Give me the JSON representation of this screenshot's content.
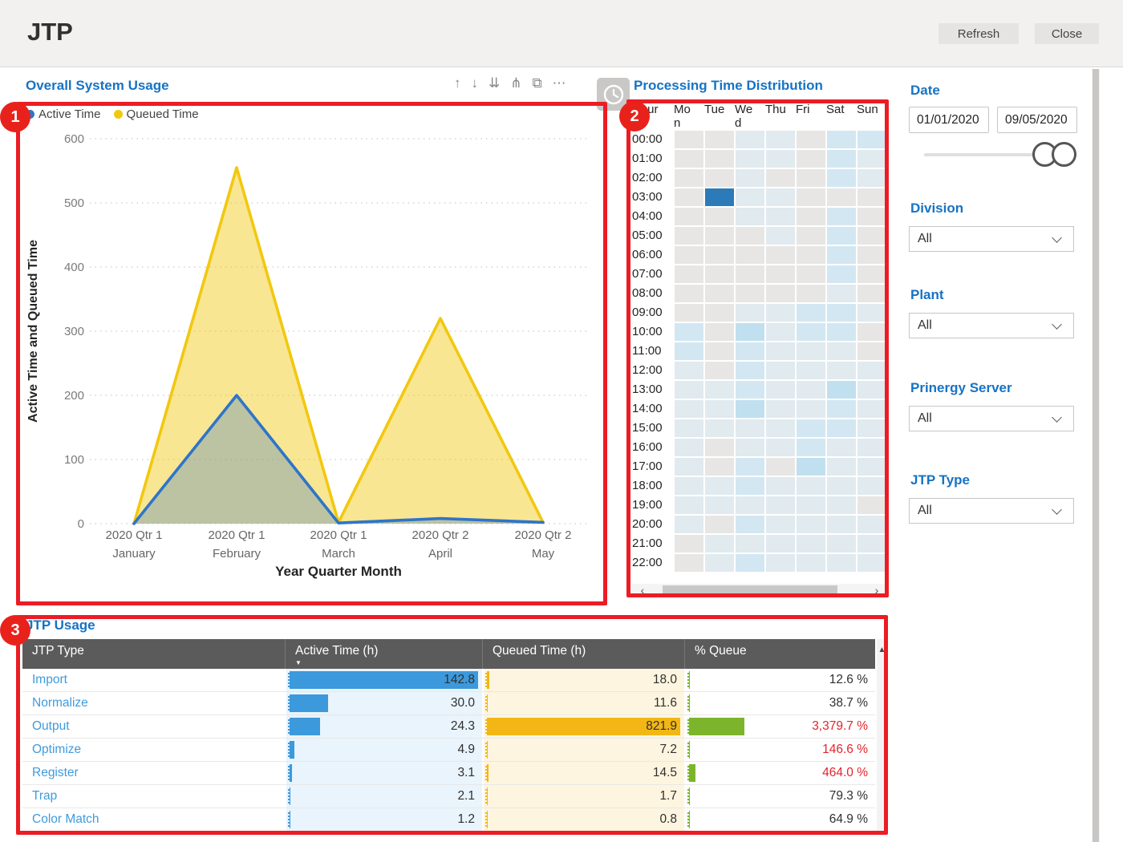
{
  "header": {
    "title": "JTP",
    "refresh_label": "Refresh",
    "close_label": "Close"
  },
  "usage_chart": {
    "title": "Overall System Usage",
    "toolbar_icons": [
      {
        "name": "arrow-up-icon",
        "glyph": "↑"
      },
      {
        "name": "arrow-down-icon",
        "glyph": "↓"
      },
      {
        "name": "double-arrow-down-icon",
        "glyph": "⇊"
      },
      {
        "name": "drill-down-icon",
        "glyph": "⋔"
      },
      {
        "name": "focus-mode-icon",
        "glyph": "⧉"
      },
      {
        "name": "more-options-icon",
        "glyph": "⋯"
      }
    ],
    "chart_data": {
      "type": "area",
      "categories": [
        [
          "2020 Qtr 1",
          "January"
        ],
        [
          "2020 Qtr 1",
          "February"
        ],
        [
          "2020 Qtr 1",
          "March"
        ],
        [
          "2020 Qtr 2",
          "April"
        ],
        [
          "2020 Qtr 2",
          "May"
        ]
      ],
      "series": [
        {
          "name": "Active Time",
          "color": "#2e75c9",
          "fill_opacity": 0.3,
          "values": [
            0,
            200,
            1,
            8,
            2
          ]
        },
        {
          "name": "Queued Time",
          "color": "#f2c80f",
          "fill_opacity": 0.45,
          "values": [
            0,
            555,
            2,
            320,
            2
          ]
        }
      ],
      "xlabel": "Year Quarter Month",
      "ylabel": "Active Time and Queued Time",
      "ylim": [
        0,
        600
      ],
      "yticks": [
        0,
        100,
        200,
        300,
        400,
        500,
        600
      ],
      "grid": "dotted-horizontal",
      "legend_position": "top-left"
    }
  },
  "heatmap": {
    "title": "Processing Time Distribution",
    "sort_icon": "▲",
    "columns": [
      "Hour",
      "Mon",
      "Tue",
      "Wed",
      "Thu",
      "Fri",
      "Sat",
      "Sun"
    ],
    "level_colors": [
      "#e7e6e5",
      "#e0eaef",
      "#d2e7f2",
      "#c0e0f0",
      "#2c7bb8"
    ],
    "rows": [
      {
        "hour": "00:00",
        "levels": [
          0,
          0,
          1,
          1,
          0,
          2,
          2
        ]
      },
      {
        "hour": "01:00",
        "levels": [
          0,
          0,
          1,
          1,
          0,
          2,
          1
        ]
      },
      {
        "hour": "02:00",
        "levels": [
          0,
          0,
          1,
          0,
          0,
          2,
          1
        ]
      },
      {
        "hour": "03:00",
        "levels": [
          0,
          4,
          1,
          1,
          0,
          0,
          0
        ]
      },
      {
        "hour": "04:00",
        "levels": [
          0,
          0,
          1,
          1,
          0,
          2,
          0
        ]
      },
      {
        "hour": "05:00",
        "levels": [
          0,
          0,
          0,
          1,
          0,
          2,
          0
        ]
      },
      {
        "hour": "06:00",
        "levels": [
          0,
          0,
          0,
          0,
          0,
          2,
          0
        ]
      },
      {
        "hour": "07:00",
        "levels": [
          0,
          0,
          0,
          0,
          0,
          2,
          0
        ]
      },
      {
        "hour": "08:00",
        "levels": [
          0,
          0,
          0,
          0,
          0,
          1,
          0
        ]
      },
      {
        "hour": "09:00",
        "levels": [
          0,
          0,
          1,
          1,
          2,
          2,
          1
        ]
      },
      {
        "hour": "10:00",
        "levels": [
          2,
          0,
          3,
          1,
          2,
          2,
          0
        ]
      },
      {
        "hour": "11:00",
        "levels": [
          2,
          0,
          2,
          1,
          1,
          1,
          0
        ]
      },
      {
        "hour": "12:00",
        "levels": [
          1,
          0,
          2,
          1,
          1,
          1,
          1
        ]
      },
      {
        "hour": "13:00",
        "levels": [
          1,
          1,
          2,
          1,
          1,
          3,
          1
        ]
      },
      {
        "hour": "14:00",
        "levels": [
          1,
          1,
          3,
          1,
          1,
          2,
          1
        ]
      },
      {
        "hour": "15:00",
        "levels": [
          1,
          1,
          1,
          1,
          2,
          2,
          1
        ]
      },
      {
        "hour": "16:00",
        "levels": [
          1,
          0,
          1,
          1,
          2,
          1,
          1
        ]
      },
      {
        "hour": "17:00",
        "levels": [
          1,
          0,
          2,
          0,
          3,
          1,
          1
        ]
      },
      {
        "hour": "18:00",
        "levels": [
          1,
          1,
          2,
          1,
          1,
          1,
          1
        ]
      },
      {
        "hour": "19:00",
        "levels": [
          1,
          1,
          1,
          1,
          1,
          1,
          0
        ]
      },
      {
        "hour": "20:00",
        "levels": [
          1,
          0,
          2,
          1,
          1,
          1,
          1
        ]
      },
      {
        "hour": "21:00",
        "levels": [
          0,
          1,
          1,
          1,
          1,
          1,
          1
        ]
      },
      {
        "hour": "22:00",
        "levels": [
          0,
          1,
          2,
          1,
          1,
          1,
          1
        ]
      }
    ],
    "scroll": {
      "left_icon": "‹",
      "right_icon": "›"
    }
  },
  "filters": {
    "date": {
      "label": "Date",
      "start": "01/01/2020",
      "end": "09/05/2020"
    },
    "division": {
      "label": "Division",
      "value": "All"
    },
    "plant": {
      "label": "Plant",
      "value": "All"
    },
    "prinergy_server": {
      "label": "Prinergy Server",
      "value": "All"
    },
    "jtp_type": {
      "label": "JTP Type",
      "value": "All"
    }
  },
  "table": {
    "title": "JTP Usage",
    "columns": [
      "JTP Type",
      "Active Time (h)",
      "Queued Time (h)",
      "% Queue"
    ],
    "sort": {
      "column_index": 1,
      "glyph": "▼"
    },
    "scroll_up_icon": "▲",
    "bar_colors": {
      "active": "#3c99dc",
      "queued": "#f2b715",
      "pct": "#7cb52b"
    },
    "rows": [
      {
        "type": "Import",
        "active": "142.8",
        "queued": "18.0",
        "pct": "12.6 %"
      },
      {
        "type": "Normalize",
        "active": "30.0",
        "queued": "11.6",
        "pct": "38.7 %"
      },
      {
        "type": "Output",
        "active": "24.3",
        "queued": "821.9",
        "pct": "3,379.7 %"
      },
      {
        "type": "Optimize",
        "active": "4.9",
        "queued": "7.2",
        "pct": "146.6 %"
      },
      {
        "type": "Register",
        "active": "3.1",
        "queued": "14.5",
        "pct": "464.0 %"
      },
      {
        "type": "Trap",
        "active": "2.1",
        "queued": "1.7",
        "pct": "79.3 %"
      },
      {
        "type": "Color Match",
        "active": "1.2",
        "queued": "0.8",
        "pct": "64.9 %"
      }
    ]
  },
  "annotations": {
    "color": "#ec1c24",
    "items": [
      {
        "label": "1"
      },
      {
        "label": "2"
      },
      {
        "label": "3"
      }
    ]
  }
}
